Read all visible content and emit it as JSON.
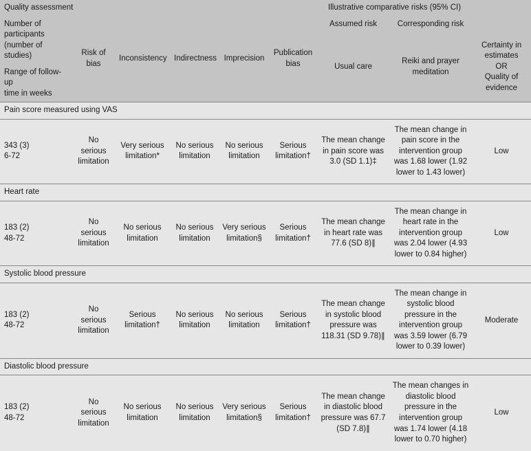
{
  "colors": {
    "header_bg": "#c4c4c4",
    "body_bg": "#e6e6e6",
    "border": "#888888",
    "text": "#1a1a1a"
  },
  "fonts": {
    "body_pt": 11.5,
    "line_height": 1.35
  },
  "header": {
    "quality_assessment": "Quality assessment",
    "illustrative": "Illustrative comparative risks (95% CI)",
    "assumed": "Assumed risk",
    "corresponding": "Corresponding risk",
    "certainty_line1": "Certainty in",
    "certainty_line2": "estimates",
    "certainty_or": "OR",
    "certainty_line3": "Quality of",
    "certainty_line4": "evidence",
    "participants_line1": "Number of",
    "participants_line2": "participants",
    "participants_line3": "(number of studies)",
    "followup_line1": "Range of follow-up",
    "followup_line2": "time in weeks",
    "risk_of_bias": "Risk of bias",
    "inconsistency": "Inconsistency",
    "indirectness": "Indirectness",
    "imprecision": "Imprecision",
    "publication_bias": "Publication bias",
    "usual_care": "Usual care",
    "reiki": "Reiki and prayer meditation"
  },
  "sections": [
    {
      "title": "Pain score measured using VAS",
      "n": "343 (3)",
      "fu": "6-72",
      "rob": "No serious limitation",
      "inc": "Very serious limitation*",
      "ind": "No serious limitation",
      "imp": "No serious limitation",
      "pub": "Serious limitation†",
      "usual": "The mean change in pain score was 3.0 (SD 1.1)‡",
      "reiki": "The mean change in pain score in the intervention group was 1.68 lower (1.92 lower to 1.43 lower)",
      "cert": "Low"
    },
    {
      "title": "Heart rate",
      "n": "183 (2)",
      "fu": "48-72",
      "rob": "No serious limitation",
      "inc": "No serious limitation",
      "ind": "No serious limitation",
      "imp": "Very serious limitation§",
      "pub": "Serious limitation†",
      "usual": "The mean change in heart rate was 77.6 (SD 8)∥",
      "reiki": "The mean change in heart rate in the intervention group was 2.04 lower (4.93 lower to 0.84 higher)",
      "cert": "Low"
    },
    {
      "title": "Systolic blood pressure",
      "n": "183 (2)",
      "fu": "48-72",
      "rob": "No serious limitation",
      "inc": "Serious limitation†",
      "ind": "No serious limitation",
      "imp": "No serious limitation",
      "pub": "Serious limitation†",
      "usual": "The mean change in systolic blood pressure was 118.31 (SD 9.78)∥",
      "reiki": "The mean change in systolic blood pressure in the intervention group was 3.59 lower (6.79 lower to 0.39 lower)",
      "cert": "Moderate"
    },
    {
      "title": "Diastolic blood pressure",
      "n": "183 (2)",
      "fu": "48-72",
      "rob": "No serious limitation",
      "inc": "No serious limitation",
      "ind": "No serious limitation",
      "imp": "Very serious limitation§",
      "pub": "Serious limitation†",
      "usual": "The mean change in diastolic blood pressure was 67.7 (SD 7.8)∥",
      "reiki": "The mean changes in diastolic blood pressure in the intervention group was 1.74 lower (4.18 lower to 0.70 higher)",
      "cert": "Low"
    }
  ]
}
